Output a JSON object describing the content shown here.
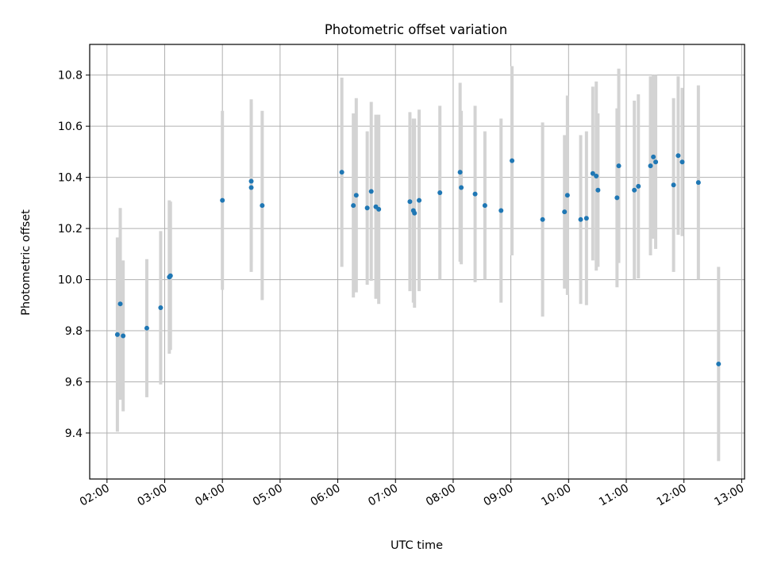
{
  "chart_data": {
    "type": "scatter",
    "title": "Photometric offset variation",
    "xlabel": "UTC time",
    "ylabel": "Photometric offset",
    "x_unit": "UTC hours",
    "xlim": [
      1.7,
      13.05
    ],
    "ylim": [
      9.22,
      10.92
    ],
    "grid": true,
    "x_ticks": [
      {
        "value": 2,
        "label": "02:00"
      },
      {
        "value": 3,
        "label": "03:00"
      },
      {
        "value": 4,
        "label": "04:00"
      },
      {
        "value": 5,
        "label": "05:00"
      },
      {
        "value": 6,
        "label": "06:00"
      },
      {
        "value": 7,
        "label": "07:00"
      },
      {
        "value": 8,
        "label": "08:00"
      },
      {
        "value": 9,
        "label": "09:00"
      },
      {
        "value": 10,
        "label": "10:00"
      },
      {
        "value": 11,
        "label": "11:00"
      },
      {
        "value": 12,
        "label": "12:00"
      },
      {
        "value": 13,
        "label": "13:00"
      }
    ],
    "y_ticks": [
      {
        "value": 9.4,
        "label": "9.4"
      },
      {
        "value": 9.6,
        "label": "9.6"
      },
      {
        "value": 9.8,
        "label": "9.8"
      },
      {
        "value": 10.0,
        "label": "10.0"
      },
      {
        "value": 10.2,
        "label": "10.2"
      },
      {
        "value": 10.4,
        "label": "10.4"
      },
      {
        "value": 10.6,
        "label": "10.6"
      },
      {
        "value": 10.8,
        "label": "10.8"
      }
    ],
    "colors": {
      "points": "#1f77b4",
      "error_bars": "#d3d3d3",
      "grid": "#b0b0b0"
    },
    "series": [
      {
        "x": [
          2.18,
          2.23,
          2.28,
          2.69,
          2.93,
          3.08,
          3.1,
          4.0,
          4.5,
          4.5,
          4.69,
          6.07,
          6.27,
          6.32,
          6.51,
          6.58,
          6.66,
          6.71,
          7.25,
          7.31,
          7.33,
          7.41,
          7.77,
          8.12,
          8.14,
          8.38,
          8.55,
          8.83,
          9.02,
          9.55,
          9.93,
          9.98,
          10.21,
          10.31,
          10.42,
          10.48,
          10.51,
          10.84,
          10.87,
          11.14,
          11.21,
          11.42,
          11.47,
          11.51,
          11.82,
          11.9,
          11.97,
          12.25,
          12.6
        ],
        "y": [
          9.785,
          9.905,
          9.78,
          9.81,
          9.89,
          10.01,
          10.015,
          10.31,
          10.385,
          10.36,
          10.29,
          10.42,
          10.29,
          10.33,
          10.28,
          10.345,
          10.285,
          10.275,
          10.305,
          10.27,
          10.26,
          10.31,
          10.34,
          10.42,
          10.36,
          10.335,
          10.29,
          10.27,
          10.465,
          10.235,
          10.265,
          10.33,
          10.235,
          10.24,
          10.415,
          10.405,
          10.35,
          10.32,
          10.445,
          10.35,
          10.365,
          10.445,
          10.48,
          10.46,
          10.37,
          10.485,
          10.46,
          10.38,
          9.67
        ],
        "y_err": [
          0.38,
          0.375,
          0.295,
          0.27,
          0.3,
          0.3,
          0.29,
          0.35,
          0.32,
          0.33,
          0.37,
          0.37,
          0.36,
          0.38,
          0.3,
          0.35,
          0.36,
          0.37,
          0.35,
          0.36,
          0.37,
          0.355,
          0.34,
          0.35,
          0.3,
          0.345,
          0.29,
          0.36,
          0.37,
          0.38,
          0.3,
          0.39,
          0.33,
          0.34,
          0.34,
          0.37,
          0.3,
          0.35,
          0.38,
          0.35,
          0.36,
          0.35,
          0.32,
          0.34,
          0.34,
          0.31,
          0.29,
          0.38,
          0.38
        ]
      }
    ]
  }
}
